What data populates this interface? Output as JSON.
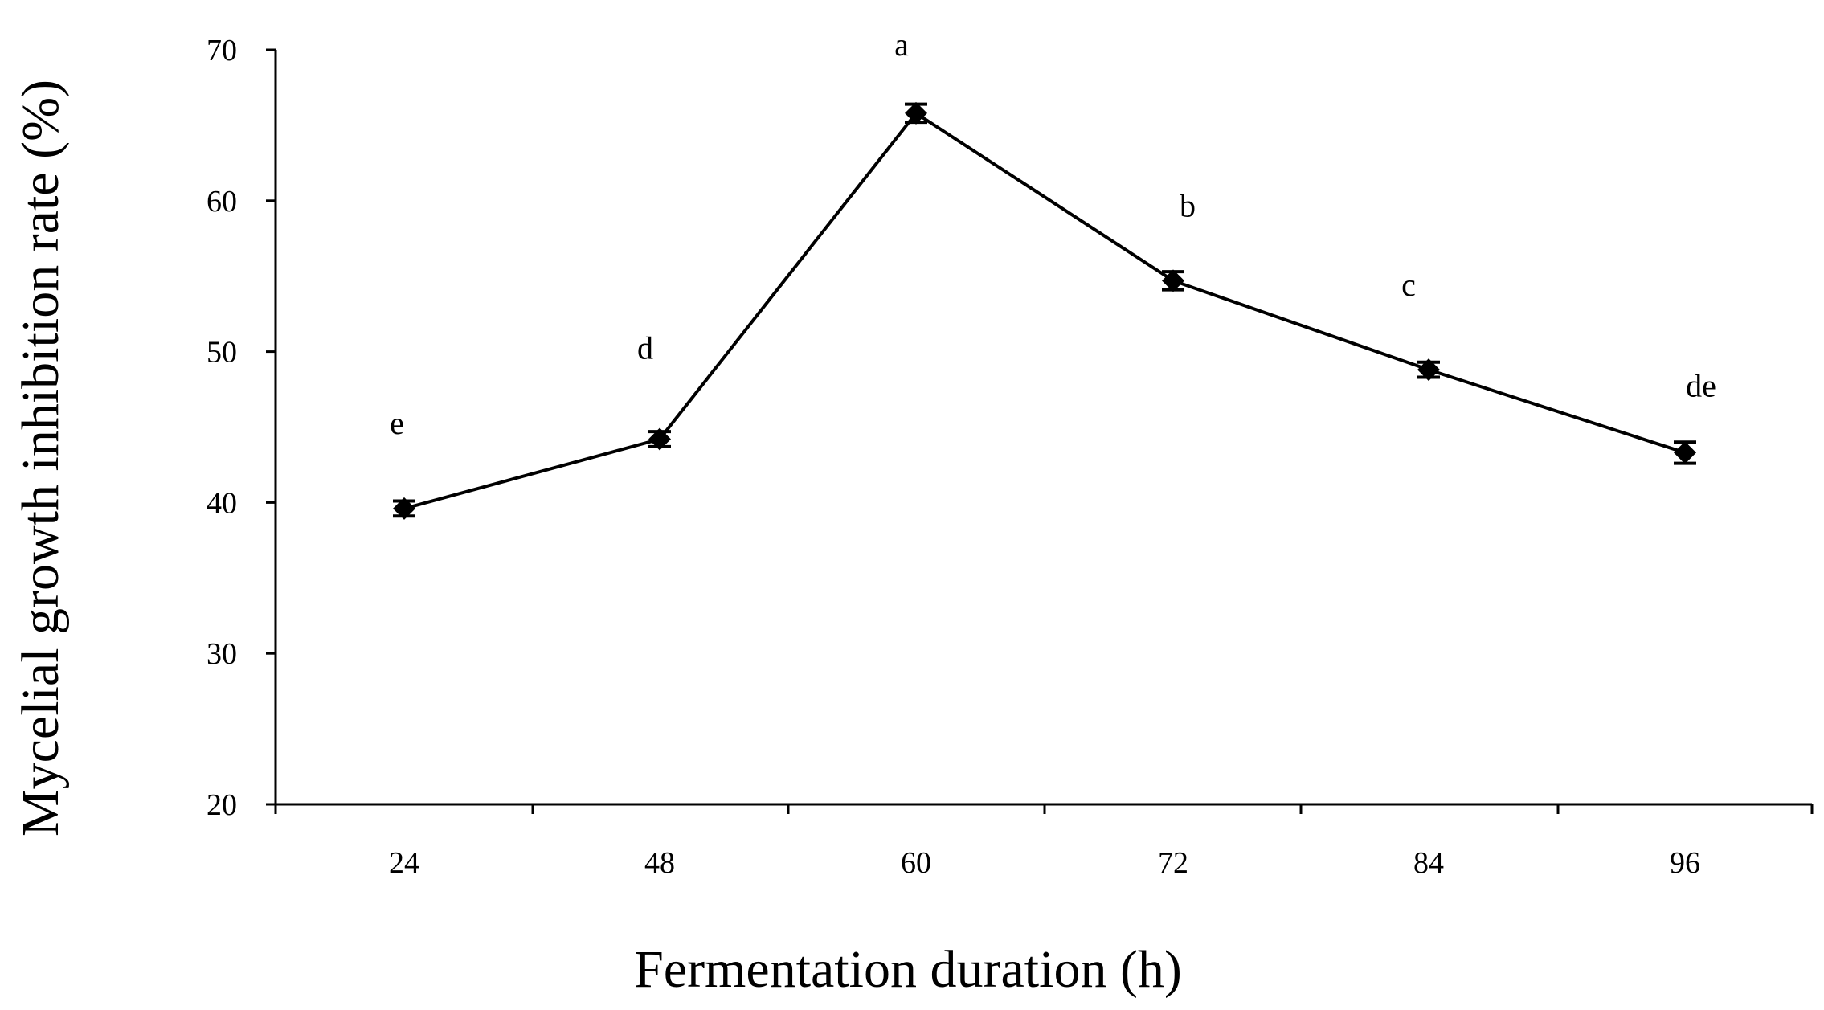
{
  "chart_data": {
    "type": "line",
    "title": "",
    "xlabel": "Fermentation duration (h)",
    "ylabel": "Mycelial growth inhibition rate (%)",
    "categories": [
      "24",
      "48",
      "60",
      "72",
      "84",
      "96"
    ],
    "ylim": [
      20,
      70
    ],
    "yticks": [
      "20",
      "30",
      "40",
      "50",
      "60",
      "70"
    ],
    "grid": false,
    "legend": "none",
    "series": [
      {
        "values": [
          39.6,
          44.2,
          65.8,
          54.7,
          48.8,
          43.3
        ],
        "errors": [
          0.5,
          0.5,
          0.6,
          0.6,
          0.5,
          0.7
        ],
        "significance": [
          "e",
          "d",
          "a",
          "b",
          "c",
          "de"
        ],
        "color": "#000000",
        "marker": "diamond"
      }
    ]
  }
}
